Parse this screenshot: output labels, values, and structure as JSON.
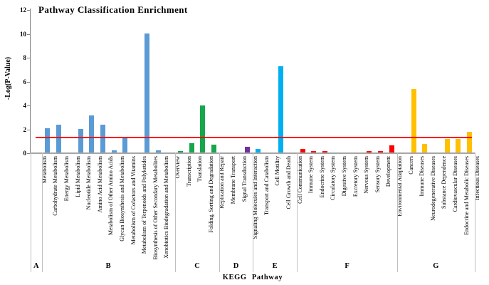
{
  "chart_data": {
    "type": "bar",
    "title": "Pathway Classification Enrichment",
    "xlabel": "KEGG Pathway",
    "ylabel": "-Log(P-Value)",
    "ylim": [
      0,
      12
    ],
    "yticks": [
      0,
      2,
      4,
      6,
      8,
      10,
      12
    ],
    "grid": false,
    "legend_position": "none",
    "threshold_line": {
      "value": 1.3,
      "color": "#ff0000"
    },
    "groups": [
      {
        "letter": "A",
        "color": "#5b9bd5",
        "items": [
          {
            "label": "Metabolism",
            "value": 0
          }
        ]
      },
      {
        "letter": "B",
        "color": "#5b9bd5",
        "items": [
          {
            "label": "Carbohydrate Metabolism",
            "value": 2.05
          },
          {
            "label": "Energy Metabolism",
            "value": 2.3
          },
          {
            "label": "Lipid Metabolism",
            "value": 0
          },
          {
            "label": "Nucleotide Metabolism",
            "value": 1.95
          },
          {
            "label": "Amino Acid Metabolism",
            "value": 3.1
          },
          {
            "label": "Metabolism of Other Amino Acids",
            "value": 2.3
          },
          {
            "label": "Glycan Biosynthesis and Metabolism",
            "value": 0.15
          },
          {
            "label": "Metabolism of Cofactors and Vitamins",
            "value": 1.3
          },
          {
            "label": "Metabolism of Terpenoids and Polyketides",
            "value": 0
          },
          {
            "label": "Biosynthesis of Other Secondary Metabolites",
            "value": 10.0
          },
          {
            "label": "Xenobiotics Biodegradation and Metabolism",
            "value": 0.15
          },
          {
            "label": "Overview",
            "value": 0
          }
        ]
      },
      {
        "letter": "C",
        "color": "#17a64b",
        "items": [
          {
            "label": "Transcription",
            "value": 0.1
          },
          {
            "label": "Translation",
            "value": 0.75
          },
          {
            "label": "Folding, Sorting and Degradation",
            "value": 3.95
          },
          {
            "label": "Replication and Repair",
            "value": 0.65
          }
        ]
      },
      {
        "letter": "D",
        "color": "#7030a0",
        "items": [
          {
            "label": "Membrane Transport",
            "value": 0
          },
          {
            "label": "Signal Transduction",
            "value": 0
          },
          {
            "label": "Signaling Molecules and Interaction",
            "value": 0.5
          }
        ]
      },
      {
        "letter": "E",
        "color": "#00b0f0",
        "items": [
          {
            "label": "Transport and Catabolism",
            "value": 0.28
          },
          {
            "label": "Cell Motility",
            "value": 0
          },
          {
            "label": "Cell Growth and Death",
            "value": 7.2
          },
          {
            "label": "Cell Communication",
            "value": 0
          }
        ]
      },
      {
        "letter": "F",
        "color": "#ff0000",
        "items": [
          {
            "label": "Immune System",
            "value": 0.32
          },
          {
            "label": "Endocrine System",
            "value": 0.1
          },
          {
            "label": "Circulatory System",
            "value": 0.1
          },
          {
            "label": "Digestive System",
            "value": 0
          },
          {
            "label": "Excretory System",
            "value": 0
          },
          {
            "label": "Nervous System",
            "value": 0
          },
          {
            "label": "Sensory System",
            "value": 0.1
          },
          {
            "label": "Development",
            "value": 0.1
          },
          {
            "label": "Environmental Adaptation",
            "value": 0.6
          }
        ]
      },
      {
        "letter": "G",
        "color": "#ffc000",
        "items": [
          {
            "label": "Cancers",
            "value": 0
          },
          {
            "label": "Immune Diseases",
            "value": 5.3
          },
          {
            "label": "Neurodegenerative Diseases",
            "value": 0.7
          },
          {
            "label": "Substance Dependence",
            "value": 0
          },
          {
            "label": "Cardiovascular Diseases",
            "value": 1.15
          },
          {
            "label": "Endocrine and Metabolic Diseases",
            "value": 1.15
          },
          {
            "label": "Infectious Diseases",
            "value": 1.75
          }
        ]
      }
    ]
  }
}
